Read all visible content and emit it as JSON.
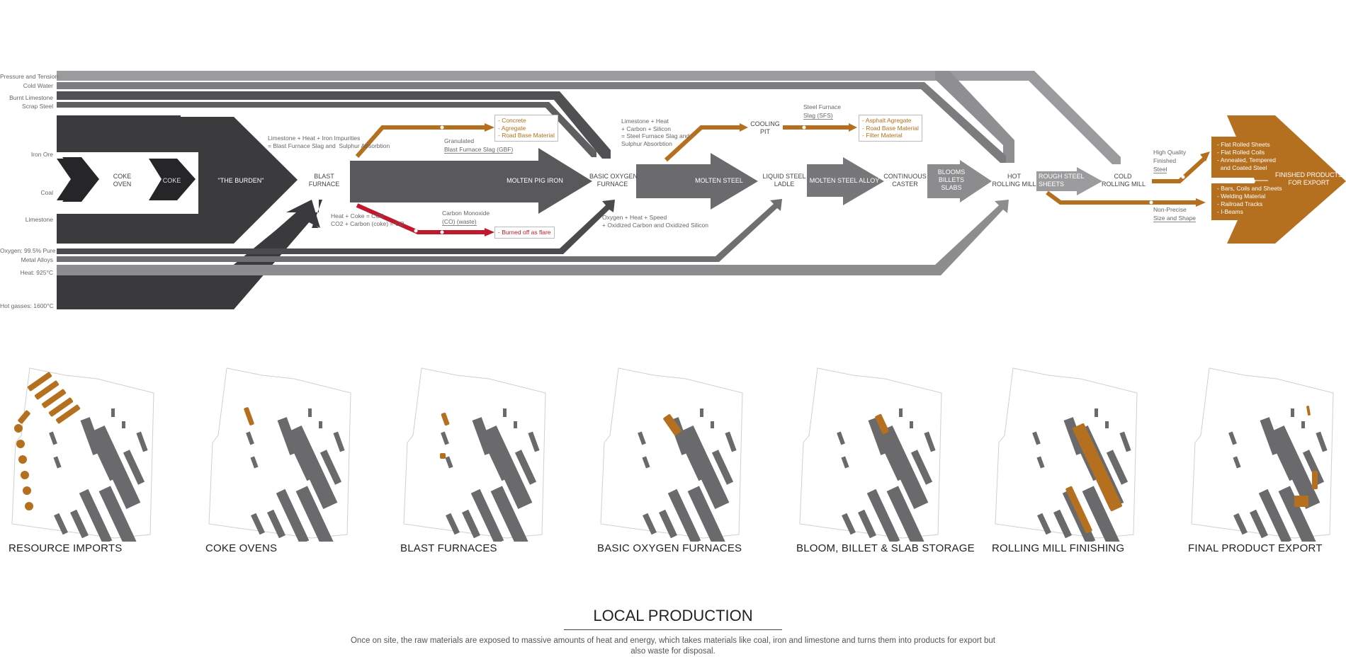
{
  "colors": {
    "dark": "#2b2b2b",
    "mid_dark": "#4d4d4f",
    "mid": "#6d6d6f",
    "light": "#8a8a8c",
    "pale": "#a0a0a2",
    "orange": "#b5701f",
    "red": "#c0182c"
  },
  "inputs": {
    "pressure": "Pressure and Tension",
    "cold_water": "Cold Water",
    "burnt_limestone": "Burnt Limestone",
    "scrap_steel": "Scrap Steel",
    "iron_ore": "Iron Ore",
    "coal": "Coal",
    "limestone": "Limestone",
    "oxygen": "Oxygen: 99.5% Pure",
    "metal_alloys": "Metal Alloys",
    "heat": "Heat: 925°C",
    "hot_gasses": "Hot gasses: 1600°C"
  },
  "stages": {
    "coke_oven": "COKE\nOVEN",
    "coke": "COKE",
    "burden": "\"THE BURDEN\"",
    "blast_furnace": "BLAST\nFURNACE",
    "molten_pig_iron": "MOLTEN PIG IRON",
    "bof": "BASIC OXYGEN\nFURNACE",
    "cooling_pit": "COOLING\nPIT",
    "molten_steel": "MOLTEN STEEL",
    "ladle": "LIQUID STEEL\nLADLE",
    "alloy": "MOLTEN STEEL ALLOY",
    "caster": "CONTINUOUS\nCASTER",
    "blooms": "BLOOMS\nBILLETS\nSLABS",
    "hot_mill": "HOT\nROLLING MILL",
    "rough_sheets": "ROUGH STEEL\nSHEETS",
    "cold_mill": "COLD\nROLLING MILL",
    "finished": "FINISHED PRODUCTS\nFOR EXPORT"
  },
  "notes": {
    "bf_reaction": "Limestone + Heat + Iron Impurities\n= Blast Furnace Slag and  Sulphur Absorbtion",
    "bf_gas": "Heat + Coke = CO2\nCO2 + Carbon (coke) = CO",
    "gbf_1": "Granulated",
    "gbf_2": "Blast Furnace Slag (GBF)",
    "co_1": "Carbon Monoxide",
    "co_2": "(CO) (waste)",
    "bof_reaction": "Limestone + Heat\n+ Carbon + Silicon\n= Steel Furnace Slag and\nSulphur Absorbtion",
    "bof_oxygen": "Oxygen + Heat + Speed\n+ Oxidized Carbon and Oxidized Silicon",
    "sfs_1": "Steel Furnace",
    "sfs_2": "Slag (SFS)",
    "hq_1": "High Quality",
    "hq_2": "Finished",
    "hq_3": "Steel",
    "np_1": "Non-Precise",
    "np_2": "Size and Shape"
  },
  "boxes": {
    "gbf_uses": "- Concrete\n- Agregate\n- Road Base Material",
    "flare": "- Burned off as flare",
    "sfs_uses": "- Asphalt Agregate\n- Road Base Material\n- Filter Material"
  },
  "products": {
    "flat": "- Flat Rolled Sheets\n- Flat Rolled Coils\n- Annealed, Tempered\n  and Coated Steel",
    "bars": "- Bars, Coils and Sheets\n- Welding Material\n- Railroad Tracks\n- I-Beams"
  },
  "maps": [
    {
      "title": "RESOURCE IMPORTS",
      "highlight": "resource"
    },
    {
      "title": "COKE OVENS",
      "highlight": "coke"
    },
    {
      "title": "BLAST FURNACES",
      "highlight": "blast"
    },
    {
      "title": "BASIC OXYGEN FURNACES",
      "highlight": "bof"
    },
    {
      "title": "BLOOM, BILLET & SLAB STORAGE",
      "highlight": "bloom"
    },
    {
      "title": "ROLLING MILL FINISHING",
      "highlight": "rolling"
    },
    {
      "title": "FINAL PRODUCT EXPORT",
      "highlight": "export"
    }
  ],
  "footer": {
    "title": "LOCAL PRODUCTION",
    "text": "Once on site, the raw materials are exposed to massive amounts of heat and energy, which takes materials like coal, iron and limestone and turns them into products for export but also waste for disposal."
  }
}
